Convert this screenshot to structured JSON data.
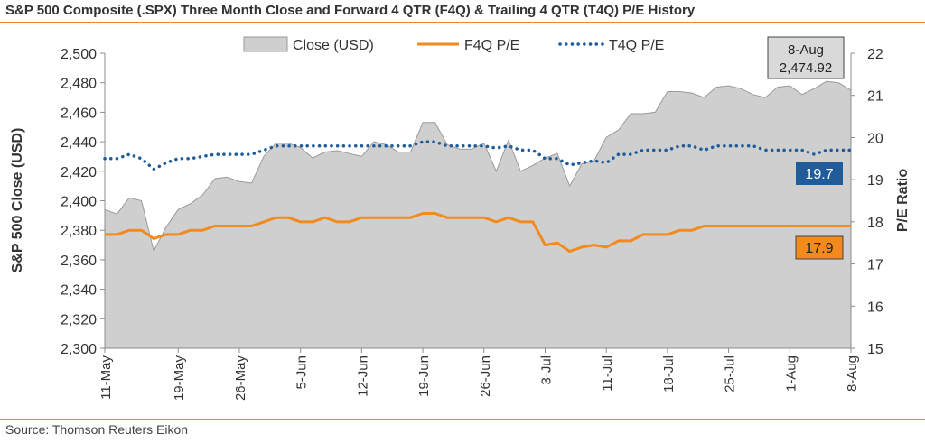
{
  "title": "S&P 500 Composite (.SPX) Three Month Close and Forward 4 QTR (F4Q) & Trailing 4 QTR (T4Q) P/E History",
  "source": "Source: Thomson Reuters Eikon",
  "colors": {
    "close_fill": "#cfcfcf",
    "close_stroke": "#9a9a9a",
    "f4q": "#f28a1c",
    "t4q": "#1f5c99",
    "rule": "#f08a1e"
  },
  "chart_data": {
    "type": "area",
    "title": "S&P 500 Composite (.SPX) Three Month Close and Forward 4 QTR (F4Q) & Trailing 4 QTR (T4Q) P/E History",
    "ylabel": "S&P 500 Close (USD)",
    "y2label": "P/E Ratio",
    "ylim": [
      2300,
      2500
    ],
    "y2lim": [
      15,
      22
    ],
    "yticks": [
      "2,300",
      "2,320",
      "2,340",
      "2,360",
      "2,380",
      "2,400",
      "2,420",
      "2,440",
      "2,460",
      "2,480",
      "2,500"
    ],
    "y2ticks": [
      "15",
      "16",
      "17",
      "18",
      "19",
      "20",
      "21",
      "22"
    ],
    "xticks": [
      "11-May",
      "19-May",
      "26-May",
      "5-Jun",
      "12-Jun",
      "19-Jun",
      "26-Jun",
      "3-Jul",
      "11-Jul",
      "18-Jul",
      "25-Jul",
      "1-Aug",
      "8-Aug"
    ],
    "x": [
      "11-May",
      "12-May",
      "15-May",
      "16-May",
      "17-May",
      "18-May",
      "19-May",
      "22-May",
      "23-May",
      "24-May",
      "25-May",
      "26-May",
      "30-May",
      "31-May",
      "1-Jun",
      "2-Jun",
      "5-Jun",
      "6-Jun",
      "7-Jun",
      "8-Jun",
      "9-Jun",
      "12-Jun",
      "13-Jun",
      "14-Jun",
      "15-Jun",
      "16-Jun",
      "19-Jun",
      "20-Jun",
      "21-Jun",
      "22-Jun",
      "23-Jun",
      "26-Jun",
      "27-Jun",
      "28-Jun",
      "29-Jun",
      "30-Jun",
      "3-Jul",
      "5-Jul",
      "6-Jul",
      "7-Jul",
      "10-Jul",
      "11-Jul",
      "12-Jul",
      "13-Jul",
      "14-Jul",
      "17-Jul",
      "18-Jul",
      "19-Jul",
      "20-Jul",
      "21-Jul",
      "24-Jul",
      "25-Jul",
      "26-Jul",
      "27-Jul",
      "28-Jul",
      "31-Jul",
      "1-Aug",
      "2-Aug",
      "3-Aug",
      "4-Aug",
      "7-Aug",
      "8-Aug"
    ],
    "series": [
      {
        "name": "Close (USD)",
        "type": "area",
        "axis": "left",
        "values": [
          2394,
          2391,
          2402,
          2400,
          2366,
          2382,
          2394,
          2398,
          2404,
          2415,
          2416,
          2413,
          2412,
          2430,
          2439,
          2439,
          2436,
          2429,
          2433,
          2434,
          2432,
          2430,
          2440,
          2438,
          2433,
          2433,
          2453,
          2453,
          2438,
          2435,
          2435,
          2439,
          2420,
          2441,
          2420,
          2424,
          2429,
          2432,
          2410,
          2425,
          2427,
          2443,
          2448,
          2459,
          2459,
          2460,
          2474,
          2474,
          2473,
          2470,
          2477,
          2478,
          2476,
          2472,
          2470,
          2477,
          2478,
          2472,
          2476,
          2481,
          2480,
          2474.92
        ]
      },
      {
        "name": "F4Q P/E",
        "type": "line",
        "axis": "right",
        "values": [
          17.7,
          17.7,
          17.8,
          17.8,
          17.6,
          17.7,
          17.7,
          17.8,
          17.8,
          17.9,
          17.9,
          17.9,
          17.9,
          18.0,
          18.1,
          18.1,
          18.0,
          18.0,
          18.1,
          18.0,
          18.0,
          18.1,
          18.1,
          18.1,
          18.1,
          18.1,
          18.2,
          18.2,
          18.1,
          18.1,
          18.1,
          18.1,
          18.0,
          18.1,
          18.0,
          18.0,
          17.45,
          17.5,
          17.3,
          17.4,
          17.45,
          17.4,
          17.55,
          17.55,
          17.7,
          17.7,
          17.7,
          17.8,
          17.8,
          17.9,
          17.9,
          17.9,
          17.9,
          17.9,
          17.9,
          17.9,
          17.9,
          17.9,
          17.9,
          17.9,
          17.9,
          17.9
        ]
      },
      {
        "name": "T4Q P/E",
        "type": "line",
        "axis": "right",
        "style": "dotted",
        "values": [
          19.5,
          19.5,
          19.6,
          19.5,
          19.25,
          19.4,
          19.5,
          19.5,
          19.55,
          19.6,
          19.6,
          19.6,
          19.6,
          19.7,
          19.8,
          19.8,
          19.8,
          19.8,
          19.8,
          19.8,
          19.8,
          19.8,
          19.8,
          19.8,
          19.8,
          19.8,
          19.9,
          19.9,
          19.8,
          19.8,
          19.8,
          19.8,
          19.75,
          19.8,
          19.7,
          19.7,
          19.5,
          19.5,
          19.35,
          19.4,
          19.45,
          19.4,
          19.6,
          19.6,
          19.7,
          19.7,
          19.7,
          19.8,
          19.8,
          19.7,
          19.8,
          19.8,
          19.8,
          19.8,
          19.7,
          19.7,
          19.7,
          19.7,
          19.6,
          19.7,
          19.7,
          19.7
        ]
      }
    ],
    "legend": {
      "placement": "top-center",
      "items": [
        "Close (USD)",
        "F4Q P/E",
        "T4Q P/E"
      ]
    },
    "annotations": {
      "date": "8-Aug",
      "close": "2,474.92",
      "t4q": "19.7",
      "f4q": "17.9"
    },
    "grid": false
  }
}
